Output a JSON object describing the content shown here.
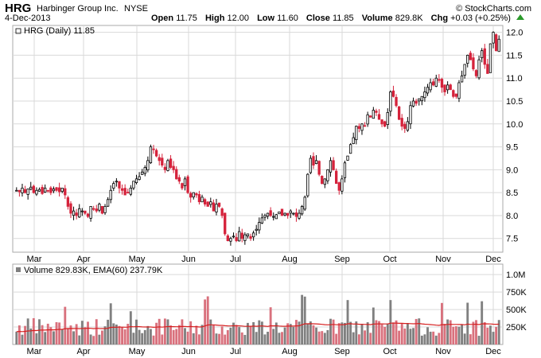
{
  "header": {
    "ticker": "HRG",
    "company": "Harbinger Group Inc.",
    "exchange": "NYSE",
    "brand": "© StockCharts.com",
    "date": "4-Dec-2013",
    "open_label": "Open",
    "open": "11.75",
    "high_label": "High",
    "high": "12.00",
    "low_label": "Low",
    "low": "11.60",
    "close_label": "Close",
    "close": "11.85",
    "volume_label": "Volume",
    "volume": "829.8K",
    "chg_label": "Chg",
    "chg": "+0.03 (+0.25%)"
  },
  "price_legend": "HRG (Daily) 11.85",
  "volume_legend": "Volume 829.83K, EMA(60) 237.79K",
  "colors": {
    "up": "#000000",
    "down": "#d5223b",
    "vol_up": "#808080",
    "vol_down": "#d9717d",
    "ema": "#d62020",
    "grid": "#d9d9d9",
    "border": "#aaaaaa",
    "arrow": "#2a9a2a"
  },
  "chart_data": [
    {
      "type": "candlestick",
      "title": "HRG (Daily) 11.85",
      "y_ticks": [
        "7.5",
        "8.0",
        "8.5",
        "9.0",
        "9.5",
        "10.0",
        "10.5",
        "11.0",
        "11.5",
        "12.0"
      ],
      "ylim": [
        7.2,
        12.15
      ],
      "x_ticks": [
        "Mar",
        "Apr",
        "May",
        "Jun",
        "Jul",
        "Aug",
        "Sep",
        "Oct",
        "Nov",
        "Dec"
      ],
      "grid": true,
      "series_close": [
        8.55,
        8.52,
        8.6,
        8.5,
        8.58,
        8.62,
        8.5,
        8.55,
        8.57,
        8.48,
        8.6,
        8.55,
        8.5,
        8.58,
        8.55,
        8.52,
        8.6,
        8.45,
        8.2,
        8.05,
        8.1,
        8.0,
        8.15,
        8.1,
        8.05,
        7.98,
        8.2,
        8.15,
        8.1,
        8.25,
        8.05,
        8.2,
        8.35,
        8.55,
        8.7,
        8.75,
        8.6,
        8.55,
        8.45,
        8.5,
        8.6,
        8.75,
        8.8,
        8.85,
        8.95,
        9.05,
        9.2,
        9.5,
        9.45,
        9.3,
        9.2,
        9.1,
        9.0,
        9.2,
        9.05,
        9.0,
        8.8,
        8.75,
        8.6,
        8.8,
        8.5,
        8.4,
        8.5,
        8.45,
        8.3,
        8.4,
        8.25,
        8.2,
        8.3,
        8.1,
        8.25,
        8.2,
        8.0,
        7.6,
        7.45,
        7.5,
        7.55,
        7.45,
        7.65,
        7.5,
        7.58,
        7.6,
        7.5,
        7.62,
        7.7,
        7.85,
        7.95,
        8.0,
        8.05,
        8.0,
        7.98,
        8.02,
        8.08,
        8.0,
        8.05,
        8.0,
        8.1,
        8.05,
        7.98,
        8.05,
        8.2,
        8.4,
        8.9,
        9.25,
        9.1,
        9.2,
        8.9,
        8.7,
        8.8,
        9.0,
        9.2,
        9.0,
        8.7,
        8.55,
        8.8,
        9.15,
        9.3,
        9.55,
        9.7,
        9.95,
        9.9,
        10.0,
        9.95,
        10.2,
        10.15,
        10.3,
        10.25,
        10.1,
        10.0,
        9.95,
        10.25,
        10.7,
        10.6,
        10.4,
        10.1,
        9.95,
        9.9,
        10.05,
        10.4,
        10.5,
        10.45,
        10.55,
        10.6,
        10.7,
        10.8,
        10.9,
        10.85,
        11.0,
        10.95,
        10.8,
        10.7,
        10.85,
        10.75,
        10.6,
        10.6,
        10.9,
        11.05,
        11.3,
        11.5,
        11.4,
        11.2,
        11.05,
        11.4,
        11.6,
        11.3,
        11.1,
        11.75,
        12.0,
        11.6,
        11.85
      ],
      "volume_ticks": [
        "250K",
        "500K",
        "750K",
        "1.0M"
      ],
      "volume_max": 1150000,
      "ema60": 237790
    }
  ]
}
